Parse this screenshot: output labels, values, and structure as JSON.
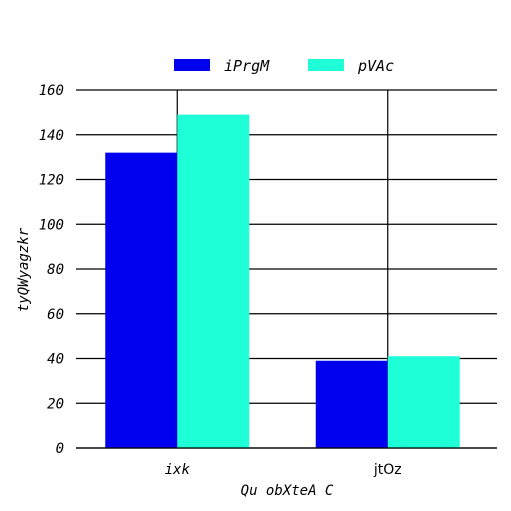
{
  "chart_data": {
    "type": "bar",
    "categories": [
      "ixk",
      "jtOz"
    ],
    "series": [
      {
        "name": "iPrgM",
        "values": [
          132,
          39
        ],
        "color": "#0000ee"
      },
      {
        "name": "pVAc",
        "values": [
          149,
          41
        ],
        "color": "#1effd8"
      }
    ],
    "xlabel": "Qu obXteA C",
    "ylabel": "tyQWyagzkr",
    "ylim": [
      0,
      160
    ],
    "yticks": [
      0,
      20,
      40,
      60,
      80,
      100,
      120,
      140,
      160
    ],
    "grid": true,
    "legend_position": "top-center"
  }
}
